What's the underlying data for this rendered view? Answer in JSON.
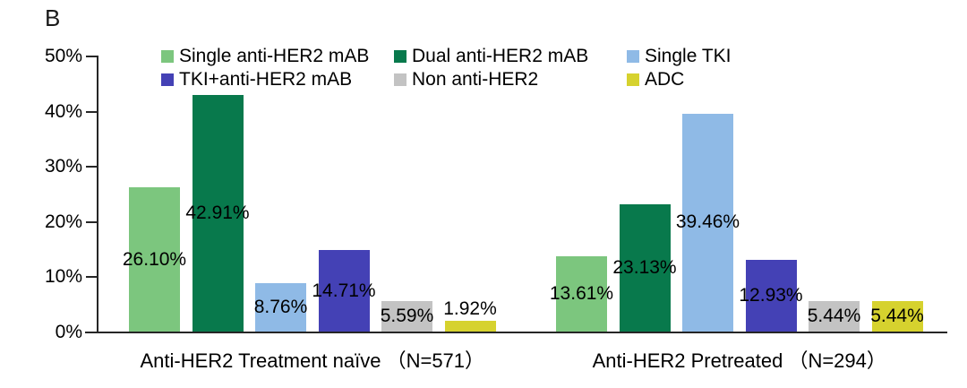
{
  "panel_label": "B",
  "colors": {
    "axis": "#262626",
    "text": "#000000",
    "background": "#ffffff"
  },
  "chart_data": {
    "type": "bar",
    "title": "",
    "xlabel": "",
    "ylabel": "",
    "ylim": [
      0,
      50
    ],
    "grid": "off",
    "legend_position": "top",
    "yticks": [
      {
        "value": 0,
        "label": "0%"
      },
      {
        "value": 10,
        "label": "10%"
      },
      {
        "value": 20,
        "label": "20%"
      },
      {
        "value": 30,
        "label": "30%"
      },
      {
        "value": 40,
        "label": "40%"
      },
      {
        "value": 50,
        "label": "50%"
      }
    ],
    "categories": [
      "Anti-HER2 Treatment naïve （N=571）",
      "Anti-HER2 Pretreated （N=294）"
    ],
    "series": [
      {
        "name": "Single anti-HER2 mAB",
        "color": "#7cc67e",
        "values": [
          26.1,
          13.61
        ],
        "labels": [
          "26.10%",
          "13.61%"
        ]
      },
      {
        "name": "Dual anti-HER2 mAB",
        "color": "#08794c",
        "values": [
          42.91,
          23.13
        ],
        "labels": [
          "42.91%",
          "23.13%"
        ]
      },
      {
        "name": "Single TKI",
        "color": "#8fbae6",
        "values": [
          8.76,
          39.46
        ],
        "labels": [
          "8.76%",
          "39.46%"
        ]
      },
      {
        "name": "TKI+anti-HER2 mAB",
        "color": "#4441b5",
        "values": [
          14.71,
          12.93
        ],
        "labels": [
          "14.71%",
          "12.93%"
        ]
      },
      {
        "name": "Non anti-HER2",
        "color": "#c3c3c3",
        "values": [
          5.59,
          5.44
        ],
        "labels": [
          "5.59%",
          "5.44%"
        ]
      },
      {
        "name": "ADC",
        "color": "#d6d22e",
        "values": [
          1.92,
          5.44
        ],
        "labels": [
          "1.92%",
          "5.44%"
        ]
      }
    ]
  }
}
